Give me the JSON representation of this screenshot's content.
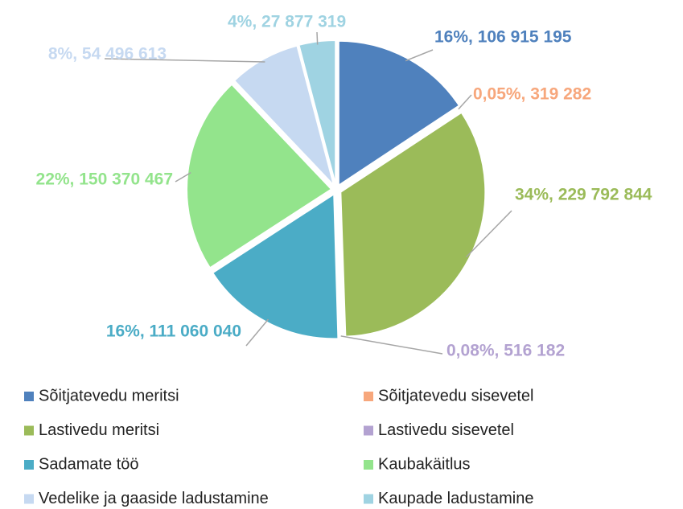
{
  "chart_data": {
    "type": "pie",
    "categories": [
      "Sõitjatevedu meritsi",
      "Sõitjatevedu sisevetel",
      "Lastivedu meritsi",
      "Lastivedu sisevetel",
      "Sadamate töö",
      "Kaubakäitlus",
      "Vedelike ja gaaside ladustamine",
      "Kaupade ladustamine"
    ],
    "values": [
      106915195,
      319282,
      229792844,
      516182,
      111060040,
      150370467,
      54496613,
      27877319
    ],
    "value_labels": [
      "16%, 106 915 195",
      "0,05%, 319 282",
      "34%, 229 792 844",
      "0,08%, 516 182",
      "16%, 111 060 040",
      "22%, 150 370 467",
      "8%, 54 496 613",
      "4%, 27 877 319"
    ],
    "colors": [
      "#4f81bd",
      "#f7a77c",
      "#9bbb59",
      "#b3a2d1",
      "#4bacc6",
      "#93e48c",
      "#c6d9f1",
      "#9fd3e2"
    ]
  }
}
